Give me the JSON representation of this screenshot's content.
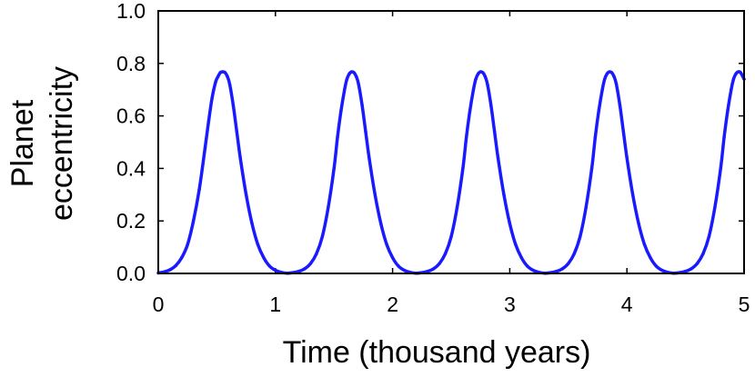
{
  "chart_data": {
    "type": "line",
    "title": "",
    "xlabel": "Time (thousand years)",
    "ylabel_lines": [
      "Planet",
      "eccentricity"
    ],
    "xlim": [
      0,
      5
    ],
    "ylim": [
      0,
      1
    ],
    "x_ticks": [
      0,
      1,
      2,
      3,
      4,
      5
    ],
    "y_ticks": [
      0.0,
      0.2,
      0.4,
      0.6,
      0.8,
      1.0
    ],
    "x_tick_labels": [
      "0",
      "1",
      "2",
      "3",
      "4",
      "5"
    ],
    "y_tick_labels": [
      "0.0",
      "0.2",
      "0.4",
      "0.6",
      "0.8",
      "1.0"
    ],
    "grid": false,
    "legend": "none",
    "series": [
      {
        "color": "#1a1aff",
        "x": [
          0,
          0.05,
          0.1,
          0.15,
          0.2,
          0.25,
          0.3,
          0.35,
          0.4,
          0.43,
          0.46,
          0.49,
          0.51,
          0.53,
          0.55,
          0.57,
          0.59,
          0.61,
          0.64,
          0.67,
          0.7,
          0.75,
          0.8,
          0.85,
          0.9,
          0.95,
          1.0,
          1.05,
          1.1,
          1.15,
          1.2,
          1.25,
          1.3,
          1.35,
          1.4,
          1.45,
          1.5,
          1.53,
          1.56,
          1.59,
          1.61,
          1.63,
          1.65,
          1.67,
          1.69,
          1.71,
          1.74,
          1.77,
          1.8,
          1.85,
          1.9,
          1.95,
          2.0,
          2.05,
          2.1,
          2.15,
          2.2,
          2.25,
          2.3,
          2.35,
          2.4,
          2.45,
          2.5,
          2.55,
          2.6,
          2.63,
          2.66,
          2.69,
          2.71,
          2.73,
          2.75,
          2.77,
          2.79,
          2.81,
          2.84,
          2.87,
          2.9,
          2.95,
          3.0,
          3.05,
          3.1,
          3.15,
          3.2,
          3.25,
          3.3,
          3.35,
          3.4,
          3.45,
          3.5,
          3.55,
          3.6,
          3.65,
          3.7,
          3.73,
          3.76,
          3.79,
          3.81,
          3.83,
          3.85,
          3.87,
          3.89,
          3.91,
          3.94,
          3.97,
          4.0,
          4.05,
          4.1,
          4.15,
          4.2,
          4.25,
          4.3,
          4.35,
          4.4,
          4.45,
          4.5,
          4.55,
          4.6,
          4.65,
          4.7,
          4.75,
          4.8,
          4.83,
          4.86,
          4.89,
          4.91,
          4.93,
          4.95,
          4.97,
          5.0
        ],
        "y": [
          0.002,
          0.006,
          0.014,
          0.03,
          0.06,
          0.11,
          0.2,
          0.32,
          0.48,
          0.58,
          0.67,
          0.73,
          0.75,
          0.765,
          0.768,
          0.765,
          0.75,
          0.72,
          0.64,
          0.54,
          0.44,
          0.3,
          0.19,
          0.11,
          0.06,
          0.028,
          0.012,
          0.004,
          0.001,
          0.003,
          0.008,
          0.018,
          0.038,
          0.075,
          0.14,
          0.25,
          0.4,
          0.52,
          0.62,
          0.7,
          0.74,
          0.76,
          0.768,
          0.765,
          0.75,
          0.72,
          0.64,
          0.54,
          0.44,
          0.3,
          0.19,
          0.11,
          0.06,
          0.028,
          0.012,
          0.004,
          0.001,
          0.003,
          0.008,
          0.018,
          0.038,
          0.075,
          0.14,
          0.25,
          0.4,
          0.52,
          0.62,
          0.7,
          0.74,
          0.76,
          0.768,
          0.765,
          0.75,
          0.72,
          0.64,
          0.54,
          0.44,
          0.3,
          0.19,
          0.11,
          0.06,
          0.028,
          0.012,
          0.004,
          0.001,
          0.003,
          0.008,
          0.018,
          0.038,
          0.075,
          0.14,
          0.25,
          0.4,
          0.52,
          0.62,
          0.7,
          0.74,
          0.76,
          0.768,
          0.765,
          0.75,
          0.72,
          0.64,
          0.54,
          0.44,
          0.3,
          0.19,
          0.11,
          0.06,
          0.028,
          0.012,
          0.004,
          0.001,
          0.003,
          0.008,
          0.018,
          0.038,
          0.075,
          0.14,
          0.25,
          0.4,
          0.52,
          0.62,
          0.7,
          0.74,
          0.76,
          0.768,
          0.765,
          0.74
        ]
      }
    ]
  }
}
